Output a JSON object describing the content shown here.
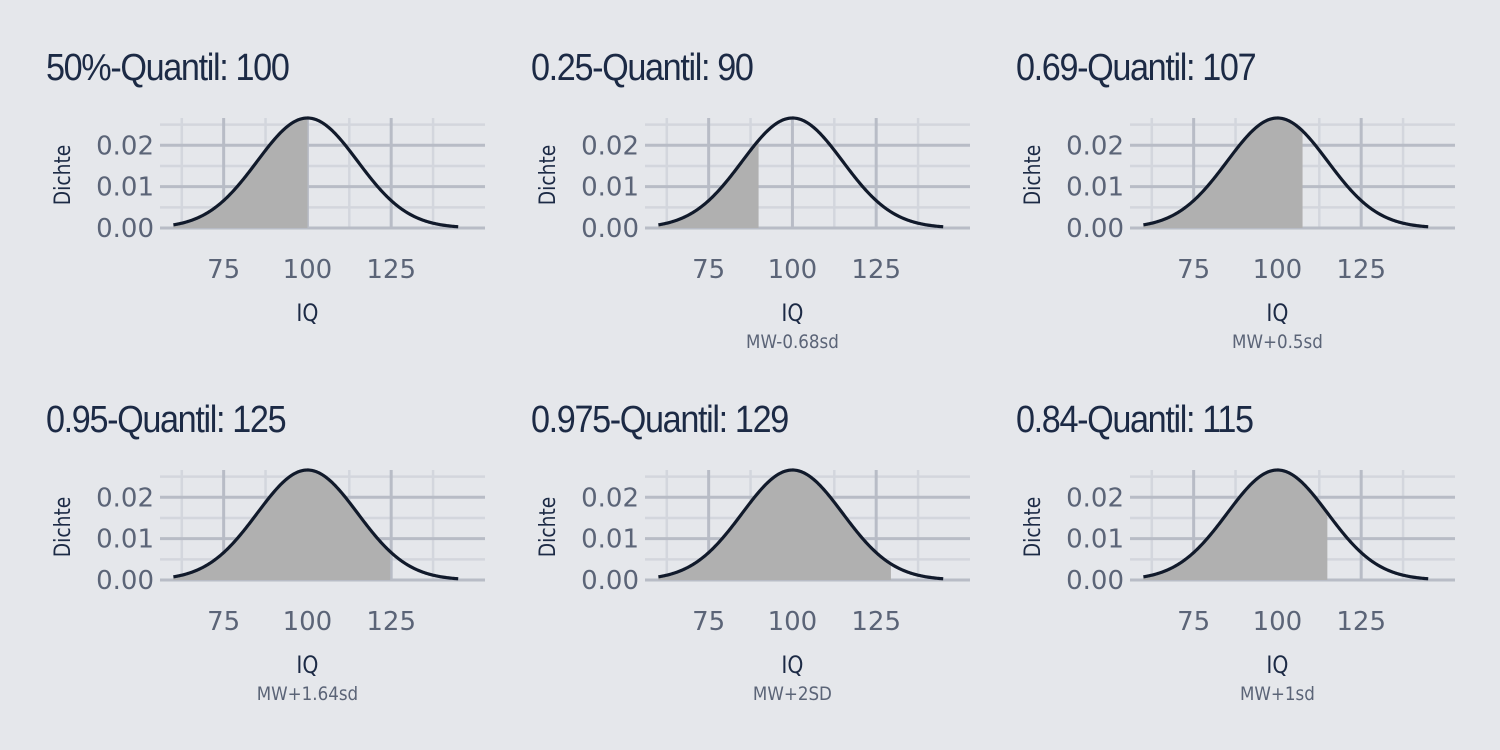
{
  "colors": {
    "background": "#e5e7eb",
    "title": "#1c2a45",
    "axis_text": "#5b6477",
    "curve": "#111a2b",
    "fill": "#b0b0b0",
    "grid_major": "#b8bcc6",
    "grid_minor": "#d3d6dd"
  },
  "chart_data": [
    {
      "type": "area",
      "title": "50%-Quantil: 100",
      "xlabel": "IQ",
      "ylabel": "Dichte",
      "caption": "",
      "distribution": {
        "mean": 100,
        "sd": 15
      },
      "x_range": [
        60,
        145
      ],
      "xlim": [
        56,
        153
      ],
      "ylim": [
        0,
        0.0266
      ],
      "xticks": [
        "75",
        "100",
        "125"
      ],
      "yticks": [
        "0.00",
        "0.01",
        "0.02"
      ],
      "shade_to": 100,
      "grid": true
    },
    {
      "type": "area",
      "title": "0.25-Quantil: 90",
      "xlabel": "IQ",
      "ylabel": "Dichte",
      "caption": "MW-0.68sd",
      "distribution": {
        "mean": 100,
        "sd": 15
      },
      "x_range": [
        60,
        145
      ],
      "xlim": [
        56,
        153
      ],
      "ylim": [
        0,
        0.0266
      ],
      "xticks": [
        "75",
        "100",
        "125"
      ],
      "yticks": [
        "0.00",
        "0.01",
        "0.02"
      ],
      "shade_to": 89.9,
      "grid": true
    },
    {
      "type": "area",
      "title": "0.69-Quantil: 107",
      "xlabel": "IQ",
      "ylabel": "Dichte",
      "caption": "MW+0.5sd",
      "distribution": {
        "mean": 100,
        "sd": 15
      },
      "x_range": [
        60,
        145
      ],
      "xlim": [
        56,
        153
      ],
      "ylim": [
        0,
        0.0266
      ],
      "xticks": [
        "75",
        "100",
        "125"
      ],
      "yticks": [
        "0.00",
        "0.01",
        "0.02"
      ],
      "shade_to": 107.5,
      "grid": true
    },
    {
      "type": "area",
      "title": "0.95-Quantil: 125",
      "xlabel": "IQ",
      "ylabel": "Dichte",
      "caption": "MW+1.64sd",
      "distribution": {
        "mean": 100,
        "sd": 15
      },
      "x_range": [
        60,
        145
      ],
      "xlim": [
        56,
        153
      ],
      "ylim": [
        0,
        0.0266
      ],
      "xticks": [
        "75",
        "100",
        "125"
      ],
      "yticks": [
        "0.00",
        "0.01",
        "0.02"
      ],
      "shade_to": 124.7,
      "grid": true
    },
    {
      "type": "area",
      "title": "0.975-Quantil: 129",
      "xlabel": "IQ",
      "ylabel": "Dichte",
      "caption": "MW+2SD",
      "distribution": {
        "mean": 100,
        "sd": 15
      },
      "x_range": [
        60,
        145
      ],
      "xlim": [
        56,
        153
      ],
      "ylim": [
        0,
        0.0266
      ],
      "xticks": [
        "75",
        "100",
        "125"
      ],
      "yticks": [
        "0.00",
        "0.01",
        "0.02"
      ],
      "shade_to": 129.4,
      "grid": true
    },
    {
      "type": "area",
      "title": "0.84-Quantil: 115",
      "xlabel": "IQ",
      "ylabel": "Dichte",
      "caption": "MW+1sd",
      "distribution": {
        "mean": 100,
        "sd": 15
      },
      "x_range": [
        60,
        145
      ],
      "xlim": [
        56,
        153
      ],
      "ylim": [
        0,
        0.0266
      ],
      "xticks": [
        "75",
        "100",
        "125"
      ],
      "yticks": [
        "0.00",
        "0.01",
        "0.02"
      ],
      "shade_to": 114.9,
      "grid": true
    }
  ]
}
